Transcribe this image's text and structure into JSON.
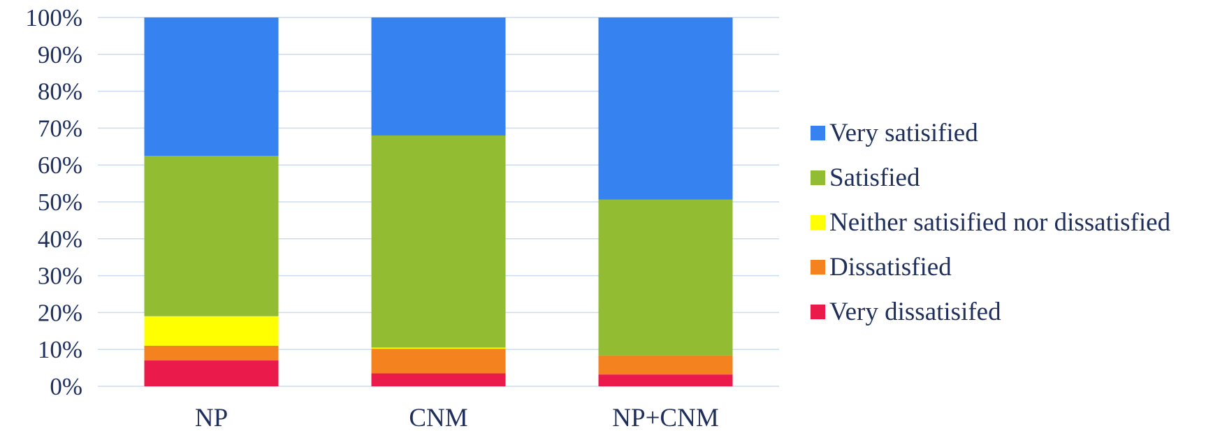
{
  "chart_data": {
    "type": "bar",
    "stacked": true,
    "percent": true,
    "title": "",
    "xlabel": "",
    "ylabel": "",
    "ylim": [
      0,
      100
    ],
    "y_ticks": [
      "0%",
      "10%",
      "20%",
      "30%",
      "40%",
      "50%",
      "60%",
      "70%",
      "80%",
      "90%",
      "100%"
    ],
    "grid": true,
    "legend_position": "right",
    "categories": [
      "NP",
      "CNM",
      "NP+CNM"
    ],
    "series": [
      {
        "name": "Very dissatisifed",
        "color": "#ea1b4b",
        "values": [
          7,
          3.5,
          3.2
        ]
      },
      {
        "name": "Dissatisfied",
        "color": "#f4821f",
        "values": [
          4,
          6.7,
          5.2
        ]
      },
      {
        "name": "Neither satisified nor dissatisfied",
        "color": "#ffff00",
        "values": [
          8,
          0.3,
          0
        ]
      },
      {
        "name": "Satisfied",
        "color": "#92bd33",
        "values": [
          43.5,
          57.5,
          42.2
        ]
      },
      {
        "name": "Very satisified",
        "color": "#3582f0",
        "values": [
          37.5,
          32,
          49.4
        ]
      }
    ]
  }
}
